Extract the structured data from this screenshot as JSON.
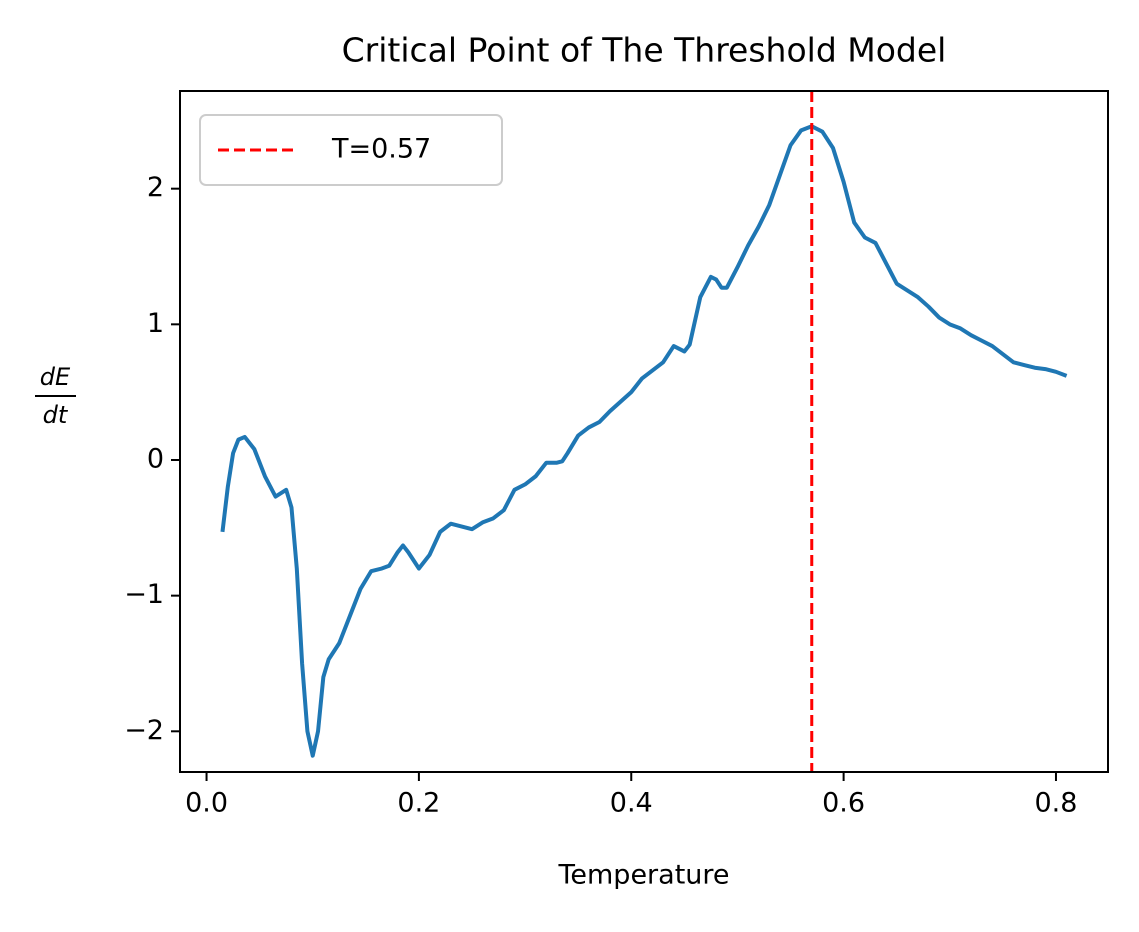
{
  "chart_data": {
    "type": "line",
    "title": "Critical Point of The Threshold Model",
    "xlabel": "Temperature",
    "ylabel": [
      "dE",
      "dt"
    ],
    "x": [
      0.015,
      0.02,
      0.025,
      0.03,
      0.036,
      0.045,
      0.055,
      0.065,
      0.075,
      0.08,
      0.085,
      0.09,
      0.095,
      0.1,
      0.105,
      0.11,
      0.115,
      0.125,
      0.135,
      0.145,
      0.155,
      0.165,
      0.172,
      0.18,
      0.185,
      0.19,
      0.2,
      0.21,
      0.22,
      0.23,
      0.24,
      0.25,
      0.26,
      0.27,
      0.28,
      0.29,
      0.3,
      0.31,
      0.32,
      0.33,
      0.335,
      0.34,
      0.35,
      0.36,
      0.37,
      0.38,
      0.39,
      0.4,
      0.41,
      0.42,
      0.43,
      0.44,
      0.45,
      0.455,
      0.465,
      0.475,
      0.48,
      0.485,
      0.49,
      0.5,
      0.51,
      0.52,
      0.53,
      0.54,
      0.55,
      0.56,
      0.57,
      0.58,
      0.59,
      0.6,
      0.61,
      0.62,
      0.63,
      0.64,
      0.65,
      0.66,
      0.67,
      0.68,
      0.69,
      0.7,
      0.71,
      0.72,
      0.73,
      0.74,
      0.75,
      0.76,
      0.77,
      0.78,
      0.79,
      0.8,
      0.81
    ],
    "series": [
      {
        "color": "#1f77b4",
        "values": [
          -0.53,
          -0.2,
          0.05,
          0.15,
          0.17,
          0.08,
          -0.12,
          -0.27,
          -0.22,
          -0.35,
          -0.8,
          -1.5,
          -2.0,
          -2.18,
          -2.0,
          -1.6,
          -1.47,
          -1.35,
          -1.15,
          -0.95,
          -0.82,
          -0.8,
          -0.78,
          -0.68,
          -0.63,
          -0.68,
          -0.8,
          -0.7,
          -0.53,
          -0.47,
          -0.49,
          -0.51,
          -0.46,
          -0.43,
          -0.37,
          -0.22,
          -0.18,
          -0.12,
          -0.02,
          -0.02,
          -0.01,
          0.05,
          0.18,
          0.24,
          0.28,
          0.36,
          0.43,
          0.5,
          0.6,
          0.66,
          0.72,
          0.84,
          0.8,
          0.85,
          1.2,
          1.35,
          1.33,
          1.27,
          1.27,
          1.42,
          1.58,
          1.72,
          1.88,
          2.1,
          2.32,
          2.43,
          2.46,
          2.42,
          2.3,
          2.05,
          1.75,
          1.64,
          1.6,
          1.45,
          1.3,
          1.25,
          1.2,
          1.13,
          1.05,
          1.0,
          0.97,
          0.92,
          0.88,
          0.84,
          0.78,
          0.72,
          0.7,
          0.68,
          0.67,
          0.65,
          0.62
        ]
      }
    ],
    "vline": {
      "x": 0.57,
      "color": "#ff0000",
      "name": "T=0.57"
    },
    "legend": "upper left",
    "xlim": [
      -0.025,
      0.849
    ],
    "ylim": [
      -2.3,
      2.72
    ],
    "xticks": [
      {
        "value": 0,
        "label": "0.0"
      },
      0.2,
      0.4,
      0.6,
      0.8
    ],
    "yticks": [
      {
        "value": -2,
        "label": "−2"
      },
      {
        "value": -1,
        "label": "−1"
      },
      0,
      1,
      2
    ]
  }
}
